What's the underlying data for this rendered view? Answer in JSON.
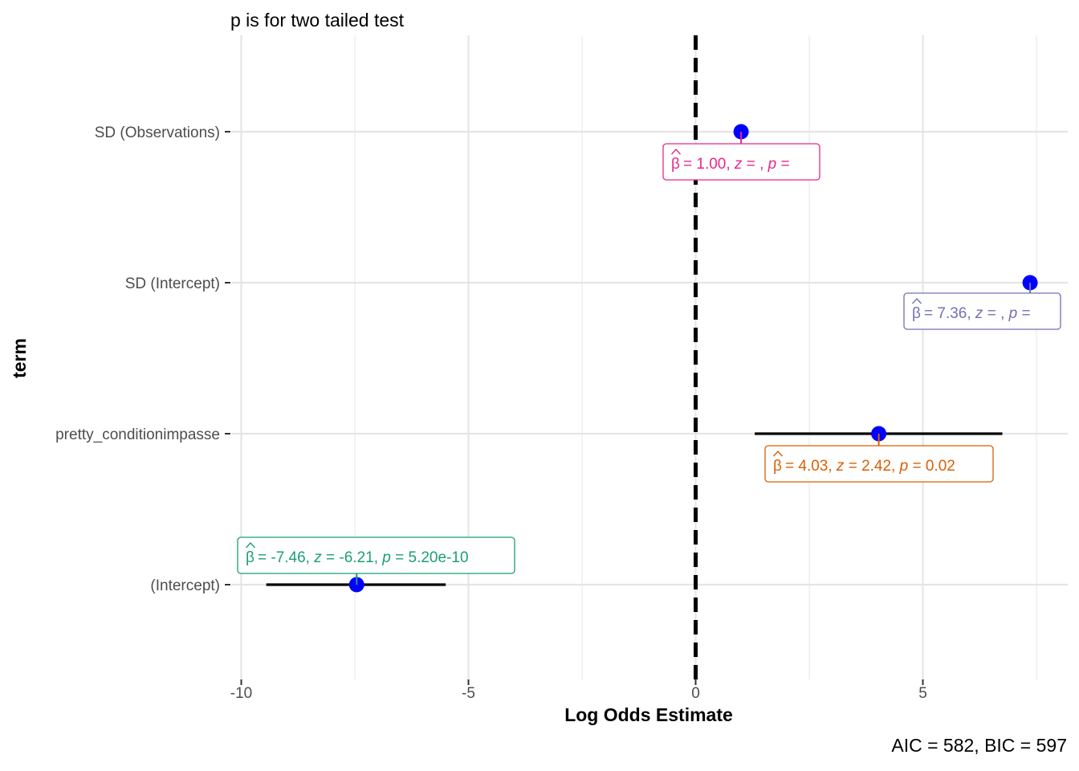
{
  "chart_data": {
    "type": "scatter",
    "title": "p is for two tailed test",
    "xlabel": "Log Odds Estimate",
    "ylabel": "term",
    "caption": "AIC = 582, BIC = 597",
    "xlim": [
      -10.3,
      8.3
    ],
    "xticks": [
      -10,
      -5,
      0,
      5
    ],
    "xtick_labels": [
      "-10",
      "-5",
      "0",
      "5"
    ],
    "reference_line_x": 0,
    "grid": true,
    "terms": [
      {
        "name": "SD (Observations)",
        "estimate": 1.0,
        "ci_low": null,
        "ci_high": null,
        "label": {
          "estimate": "1.00",
          "z": "",
          "p": ""
        },
        "color": "#e7298a"
      },
      {
        "name": "SD (Intercept)",
        "estimate": 7.36,
        "ci_low": null,
        "ci_high": null,
        "label": {
          "estimate": "7.36",
          "z": "",
          "p": ""
        },
        "color": "#7570b3"
      },
      {
        "name": "pretty_conditionimpasse",
        "estimate": 4.03,
        "ci_low": 1.3,
        "ci_high": 6.75,
        "label": {
          "estimate": "4.03",
          "z": "2.42",
          "p": "0.02"
        },
        "color": "#d95f02"
      },
      {
        "name": "(Intercept)",
        "estimate": -7.46,
        "ci_low": -9.45,
        "ci_high": -5.5,
        "label": {
          "estimate": "-7.46",
          "z": "-6.21",
          "p": "5.20e-10"
        },
        "color": "#1b9e77"
      }
    ],
    "point_color": "#0000ff"
  }
}
